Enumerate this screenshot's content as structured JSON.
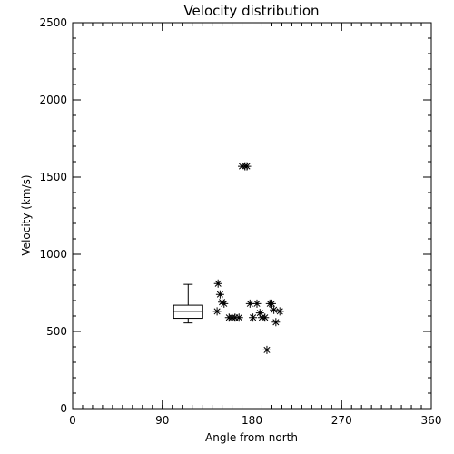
{
  "chart_data": {
    "type": "scatter",
    "title": "Velocity distribution",
    "xlabel": "Angle from north",
    "ylabel": "Velocity (km/s)",
    "xlim": [
      0,
      360
    ],
    "ylim": [
      0,
      2500
    ],
    "xticks": [
      0,
      90,
      180,
      270,
      360
    ],
    "yticks": [
      0,
      500,
      1000,
      1500,
      2000,
      2500
    ],
    "x_minor_step": 10,
    "y_minor_step": 100,
    "grid": false,
    "legend": "none",
    "marker": "asterisk",
    "color": "#000000",
    "points": [
      {
        "x": 146,
        "y": 810
      },
      {
        "x": 148,
        "y": 740
      },
      {
        "x": 150,
        "y": 690
      },
      {
        "x": 152,
        "y": 680
      },
      {
        "x": 145,
        "y": 630
      },
      {
        "x": 157,
        "y": 590
      },
      {
        "x": 160,
        "y": 590
      },
      {
        "x": 163,
        "y": 590
      },
      {
        "x": 167,
        "y": 590
      },
      {
        "x": 170,
        "y": 1570
      },
      {
        "x": 173,
        "y": 1570
      },
      {
        "x": 175,
        "y": 1570
      },
      {
        "x": 178,
        "y": 680
      },
      {
        "x": 181,
        "y": 590
      },
      {
        "x": 185,
        "y": 680
      },
      {
        "x": 188,
        "y": 620
      },
      {
        "x": 190,
        "y": 590
      },
      {
        "x": 193,
        "y": 590
      },
      {
        "x": 195,
        "y": 380
      },
      {
        "x": 198,
        "y": 680
      },
      {
        "x": 200,
        "y": 680
      },
      {
        "x": 202,
        "y": 640
      },
      {
        "x": 204,
        "y": 560
      },
      {
        "x": 208,
        "y": 630
      }
    ],
    "boxplot": {
      "x": 116,
      "min": 555,
      "q1": 585,
      "median": 630,
      "q3": 670,
      "max": 805
    }
  }
}
